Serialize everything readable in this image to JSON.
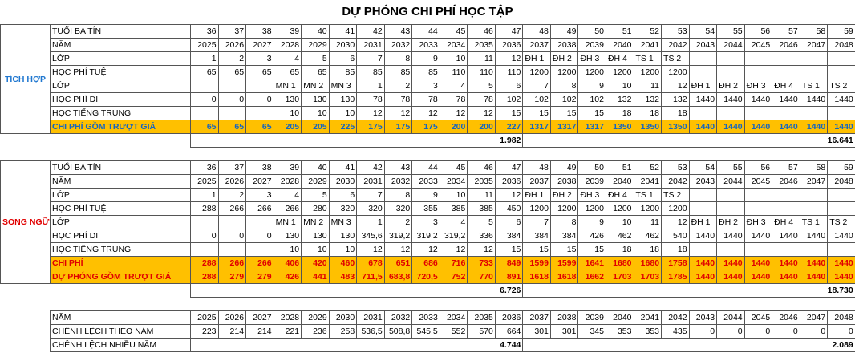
{
  "title": "DỰ PHÓNG CHI PHÍ HỌC TẬP",
  "sections": [
    {
      "group": "TÍCH HỢP",
      "rows": [
        {
          "label": "TUỔI BA TÍN",
          "cells": [
            36,
            37,
            38,
            39,
            40,
            41,
            42,
            43,
            44,
            45,
            46,
            47,
            48,
            49,
            50,
            51,
            52,
            53,
            54,
            55,
            56,
            57,
            58,
            59
          ]
        },
        {
          "label": "NĂM",
          "cells": [
            2025,
            2026,
            2027,
            2028,
            2029,
            2030,
            2031,
            2032,
            2033,
            2034,
            2035,
            2036,
            2037,
            2038,
            2039,
            2040,
            2041,
            2042,
            2043,
            2044,
            2045,
            2046,
            2047,
            2048
          ]
        },
        {
          "label": "LỚP",
          "cells": [
            1,
            2,
            3,
            4,
            5,
            6,
            7,
            8,
            9,
            10,
            11,
            12,
            "ĐH 1",
            "ĐH 2",
            "ĐH 3",
            "ĐH 4",
            "TS 1",
            "TS 2",
            null,
            null,
            null,
            null,
            null,
            null
          ]
        },
        {
          "label": "HỌC PHÍ TUỆ",
          "cells": [
            65,
            65,
            65,
            65,
            65,
            85,
            85,
            85,
            85,
            110,
            110,
            110,
            1200,
            1200,
            1200,
            1200,
            1200,
            1200,
            null,
            null,
            null,
            null,
            null,
            null
          ]
        },
        {
          "label": "LỚP",
          "cells": [
            null,
            null,
            null,
            "MN 1",
            "MN 2",
            "MN 3",
            1,
            2,
            3,
            4,
            5,
            6,
            7,
            8,
            9,
            10,
            11,
            12,
            "ĐH 1",
            "ĐH 2",
            "ĐH 3",
            "ĐH 4",
            "TS 1",
            "TS 2"
          ]
        },
        {
          "label": "HỌC PHÍ DI",
          "cells": [
            0,
            0,
            0,
            130,
            130,
            130,
            78,
            78,
            78,
            78,
            78,
            102,
            102,
            102,
            102,
            132,
            132,
            132,
            1440,
            1440,
            1440,
            1440,
            1440,
            1440
          ]
        },
        {
          "label": "HỌC TIẾNG TRUNG",
          "cells": [
            null,
            null,
            null,
            10,
            10,
            10,
            12,
            12,
            12,
            12,
            12,
            15,
            15,
            15,
            15,
            18,
            18,
            18,
            null,
            null,
            null,
            null,
            null,
            null
          ]
        },
        {
          "label": "CHI PHÍ GỒM TRƯỢT GIÁ",
          "cells": [
            65,
            65,
            65,
            205,
            205,
            225,
            175,
            175,
            175,
            200,
            200,
            227,
            1317,
            1317,
            1317,
            1350,
            1350,
            1350,
            1440,
            1440,
            1440,
            1440,
            1440,
            1440
          ]
        }
      ],
      "totals": [
        "1.982",
        "16.641"
      ]
    },
    {
      "group": "SONG NGỮ",
      "rows": [
        {
          "label": "TUỔI BA TÍN",
          "cells": [
            36,
            37,
            38,
            39,
            40,
            41,
            42,
            43,
            44,
            45,
            46,
            47,
            48,
            49,
            50,
            51,
            52,
            53,
            54,
            55,
            56,
            57,
            58,
            59
          ]
        },
        {
          "label": "NĂM",
          "cells": [
            2025,
            2026,
            2027,
            2028,
            2029,
            2030,
            2031,
            2032,
            2033,
            2034,
            2035,
            2036,
            2037,
            2038,
            2039,
            2040,
            2041,
            2042,
            2043,
            2044,
            2045,
            2046,
            2047,
            2048
          ]
        },
        {
          "label": "LỚP",
          "cells": [
            1,
            2,
            3,
            4,
            5,
            6,
            7,
            8,
            9,
            10,
            11,
            12,
            "ĐH 1",
            "ĐH 2",
            "ĐH 3",
            "ĐH 4",
            "TS 1",
            "TS 2",
            null,
            null,
            null,
            null,
            null,
            null
          ]
        },
        {
          "label": "HỌC PHÍ TUỆ",
          "cells": [
            288,
            266,
            266,
            266,
            280,
            320,
            320,
            320,
            355,
            385,
            385,
            450,
            1200,
            1200,
            1200,
            1200,
            1200,
            1200,
            null,
            null,
            null,
            null,
            null,
            null
          ]
        },
        {
          "label": "LỚP",
          "cells": [
            null,
            null,
            null,
            "MN 1",
            "MN 2",
            "MN 3",
            1,
            2,
            3,
            4,
            5,
            6,
            7,
            8,
            9,
            10,
            11,
            12,
            "ĐH 1",
            "ĐH 2",
            "ĐH 3",
            "ĐH 4",
            "TS 1",
            "TS 2"
          ]
        },
        {
          "label": "HỌC PHÍ DI",
          "cells": [
            0,
            0,
            0,
            130,
            130,
            130,
            "345,6",
            "319,2",
            "319,2",
            "319,2",
            336,
            384,
            384,
            384,
            426,
            462,
            462,
            540,
            1440,
            1440,
            1440,
            1440,
            1440,
            1440
          ]
        },
        {
          "label": "HỌC TIẾNG TRUNG",
          "cells": [
            null,
            null,
            null,
            10,
            10,
            10,
            12,
            12,
            12,
            12,
            12,
            15,
            15,
            15,
            15,
            18,
            18,
            18,
            null,
            null,
            null,
            null,
            null,
            null
          ]
        },
        {
          "label": "CHI PHÍ",
          "cells": [
            288,
            266,
            266,
            406,
            420,
            460,
            678,
            651,
            686,
            716,
            733,
            849,
            1599,
            1599,
            1641,
            1680,
            1680,
            1758,
            1440,
            1440,
            1440,
            1440,
            1440,
            1440
          ]
        },
        {
          "label": "DỰ PHÓNG GỒM TRƯỢT GIÁ",
          "cells": [
            288,
            279,
            279,
            426,
            441,
            483,
            "711,5",
            "683,8",
            "720,5",
            752,
            770,
            891,
            1618,
            1618,
            1662,
            1703,
            1703,
            1785,
            1440,
            1440,
            1440,
            1440,
            1440,
            1440
          ]
        }
      ],
      "totals": [
        "6.726",
        "18.730"
      ]
    }
  ],
  "comparison": {
    "rows": [
      {
        "label": "NĂM",
        "cells": [
          2025,
          2026,
          2027,
          2028,
          2029,
          2030,
          2031,
          2032,
          2033,
          2034,
          2035,
          2036,
          2037,
          2038,
          2039,
          2040,
          2041,
          2042,
          2043,
          2044,
          2045,
          2046,
          2047,
          2048
        ]
      },
      {
        "label": "CHÊNH LỆCH THEO NĂM",
        "cells": [
          223,
          214,
          214,
          221,
          236,
          258,
          "536,5",
          "508,8",
          "545,5",
          552,
          570,
          664,
          301,
          301,
          345,
          353,
          353,
          435,
          0,
          0,
          0,
          0,
          0,
          0
        ]
      }
    ],
    "total_label": "CHÊNH LỆCH NHIỀU NĂM",
    "totals": [
      "4.744",
      "2.089"
    ]
  }
}
